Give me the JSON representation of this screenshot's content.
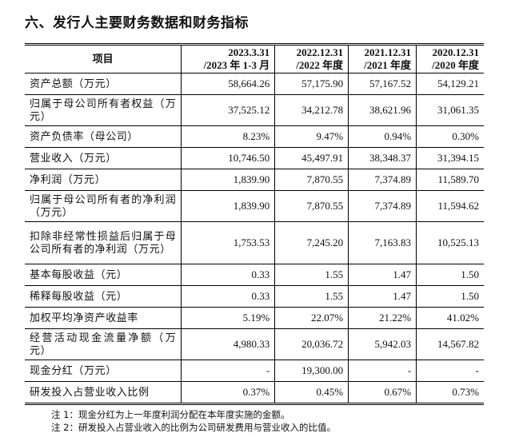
{
  "title": "六、发行人主要财务数据和财务指标",
  "table": {
    "headers": [
      "项目",
      "2023.3.31\n/2023 年 1-3 月",
      "2022.12.31\n/2022 年度",
      "2021.12.31\n/2021 年度",
      "2020.12.31\n/2020 年度"
    ],
    "header_lines": [
      [
        "2023.3.31",
        "/2023 年 1-3 月"
      ],
      [
        "2022.12.31",
        "/2022 年度"
      ],
      [
        "2021.12.31",
        "/2021 年度"
      ],
      [
        "2020.12.31",
        "/2020 年度"
      ]
    ],
    "header_item": "项目",
    "rows": [
      {
        "label": "资产总额（万元）",
        "lines": 1,
        "values": [
          "58,664.26",
          "57,175.90",
          "57,167.52",
          "54,129.21"
        ]
      },
      {
        "label": "归属于母公司所有者权益（万元）",
        "lines": 2,
        "values": [
          "37,525.12",
          "34,212.78",
          "38,621.96",
          "31,061.35"
        ]
      },
      {
        "label": "资产负债率（母公司）",
        "lines": 1,
        "values": [
          "8.23%",
          "9.47%",
          "0.94%",
          "0.30%"
        ]
      },
      {
        "label": "营业收入（万元）",
        "lines": 1,
        "values": [
          "10,746.50",
          "45,497.91",
          "38,348.37",
          "31,394.15"
        ]
      },
      {
        "label": "净利润（万元）",
        "lines": 1,
        "values": [
          "1,839.90",
          "7,870.55",
          "7,374.89",
          "11,589.70"
        ]
      },
      {
        "label": "归属于母公司所有者的净利润（万元）",
        "lines": 2,
        "values": [
          "1,839.90",
          "7,870.55",
          "7,374.89",
          "11,594.62"
        ]
      },
      {
        "label": "扣除非经常性损益后归属于母公司所有者的净利润（万元）",
        "lines": 3,
        "values": [
          "1,753.53",
          "7,245.20",
          "7,163.83",
          "10,525.13"
        ]
      },
      {
        "label": "基本每股收益（元）",
        "lines": 1,
        "values": [
          "0.33",
          "1.55",
          "1.47",
          "1.50"
        ]
      },
      {
        "label": "稀释每股收益（元）",
        "lines": 1,
        "values": [
          "0.33",
          "1.55",
          "1.47",
          "1.50"
        ]
      },
      {
        "label": "加权平均净资产收益率",
        "lines": 1,
        "values": [
          "5.19%",
          "22.07%",
          "21.22%",
          "41.02%"
        ]
      },
      {
        "label": "经营活动现金流量净额（万元）",
        "lines": 2,
        "values": [
          "4,980.33",
          "20,036.72",
          "5,942.03",
          "14,567.82"
        ]
      },
      {
        "label": "现金分红（万元）",
        "lines": 1,
        "values": [
          "-",
          "19,300.00",
          "-",
          "-"
        ]
      },
      {
        "label": "研发投入占营业收入比例",
        "lines": 1,
        "values": [
          "0.37%",
          "0.45%",
          "0.67%",
          "0.73%"
        ]
      }
    ]
  },
  "notes": [
    "注 1：现金分红为上一年度利润分配在本年度实施的金额。",
    "注 2：研发投入占营业收入的比例为公司研发费用与营业收入的比值。"
  ]
}
